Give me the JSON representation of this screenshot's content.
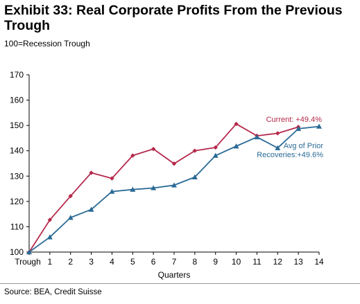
{
  "header": {
    "title": "Exhibit 33: Real Corporate Profits From the Previous Trough",
    "subtitle": "100=Recession Trough"
  },
  "footer": {
    "source": "Source: BEA, Credit Suisse"
  },
  "chart_data": {
    "type": "line",
    "xlabel": "Quarters",
    "ylabel": "",
    "categories": [
      "Trough",
      "1",
      "2",
      "3",
      "4",
      "5",
      "6",
      "7",
      "8",
      "9",
      "10",
      "11",
      "12",
      "13",
      "14"
    ],
    "ylim": [
      100,
      170
    ],
    "yticks": [
      100,
      110,
      120,
      130,
      140,
      150,
      160,
      170
    ],
    "grid": false,
    "series": [
      {
        "name": "Current: +49.4%",
        "color": "#b5284b",
        "marker": "diamond",
        "values": [
          100,
          112.7,
          122.1,
          131.3,
          129.1,
          138.1,
          140.7,
          134.9,
          140.0,
          141.3,
          150.6,
          145.9,
          146.9,
          149.4,
          null
        ]
      },
      {
        "name": "Avg of Prior Recoveries:+49.6%",
        "color": "#2a6a96",
        "marker": "triangle",
        "values": [
          100,
          105.9,
          113.6,
          116.8,
          123.9,
          124.7,
          125.3,
          126.4,
          129.6,
          138.1,
          141.8,
          145.4,
          141.1,
          148.7,
          149.6
        ]
      }
    ]
  }
}
